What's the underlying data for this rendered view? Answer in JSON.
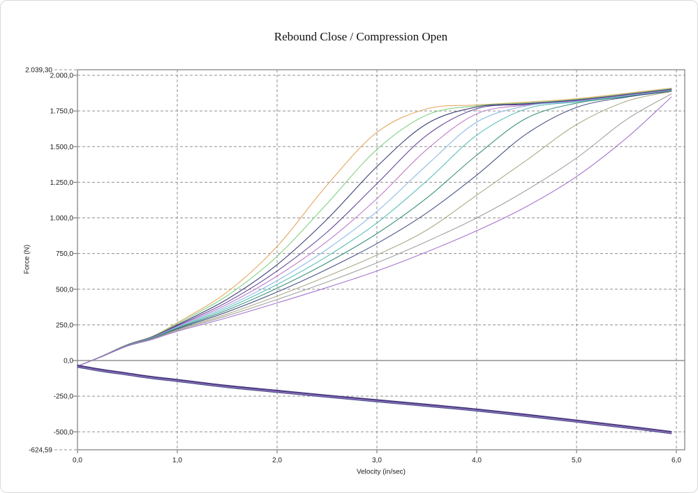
{
  "chart_data": {
    "type": "line",
    "title": "Rebound Close / Compression Open",
    "xlabel": "Velocity (in/sec)",
    "ylabel": "Force (N)",
    "xlim": [
      0,
      6.1
    ],
    "ylim": [
      -624.59,
      2039.3
    ],
    "ymax_label": "2.039,30",
    "ymin_label": "-624,59",
    "grid": "dashed",
    "legend": "none",
    "x_ticks": [
      {
        "label": "0,0",
        "value": 0
      },
      {
        "label": "1,0",
        "value": 1
      },
      {
        "label": "2,0",
        "value": 2
      },
      {
        "label": "3,0",
        "value": 3
      },
      {
        "label": "4,0",
        "value": 4
      },
      {
        "label": "5,0",
        "value": 5
      },
      {
        "label": "6,0",
        "value": 6
      }
    ],
    "y_ticks": [
      {
        "label": "2.000,0",
        "value": 2000
      },
      {
        "label": "1.750,0",
        "value": 1750
      },
      {
        "label": "1.500,0",
        "value": 1500
      },
      {
        "label": "1.250,0",
        "value": 1250
      },
      {
        "label": "1.000,0",
        "value": 1000
      },
      {
        "label": "750,0",
        "value": 750
      },
      {
        "label": "500,0",
        "value": 500
      },
      {
        "label": "250,0",
        "value": 250
      },
      {
        "label": "0,0",
        "value": 0
      },
      {
        "label": "-250,0",
        "value": -250
      },
      {
        "label": "-500,0",
        "value": -500
      }
    ],
    "x": [
      0,
      0.1,
      0.25,
      0.5,
      0.75,
      1,
      1.5,
      2,
      2.5,
      3,
      3.5,
      4,
      4.5,
      5,
      5.5,
      5.95
    ],
    "series": [
      {
        "name": "trace-01",
        "color": "#E2A45A",
        "values": [
          -40,
          -12,
          32,
          112,
          170,
          265,
          480,
          800,
          1230,
          1600,
          1765,
          1792,
          1812,
          1836,
          1874,
          1910
        ]
      },
      {
        "name": "trace-02",
        "color": "#7CCF7C",
        "values": [
          -40,
          -12,
          32,
          111,
          168,
          258,
          455,
          730,
          1100,
          1480,
          1722,
          1786,
          1806,
          1831,
          1869,
          1906
        ]
      },
      {
        "name": "trace-03",
        "color": "#2F3570",
        "values": [
          -40,
          -12,
          32,
          110,
          166,
          250,
          430,
          672,
          990,
          1360,
          1660,
          1778,
          1801,
          1827,
          1865,
          1902
        ]
      },
      {
        "name": "trace-04",
        "color": "#5C3E94",
        "values": [
          -40,
          -12,
          31,
          109,
          164,
          244,
          410,
          628,
          900,
          1240,
          1580,
          1766,
          1796,
          1823,
          1862,
          1899
        ]
      },
      {
        "name": "trace-05",
        "color": "#BC76C6",
        "values": [
          -40,
          -12,
          31,
          108,
          162,
          239,
          394,
          592,
          835,
          1135,
          1480,
          1730,
          1791,
          1820,
          1859,
          1896
        ]
      },
      {
        "name": "trace-06",
        "color": "#86B7E4",
        "values": [
          -40,
          -12,
          31,
          107,
          160,
          234,
          380,
          560,
          780,
          1045,
          1370,
          1672,
          1786,
          1816,
          1856,
          1894
        ]
      },
      {
        "name": "trace-07",
        "color": "#52BBB4",
        "values": [
          -40,
          -12,
          30,
          106,
          158,
          230,
          367,
          533,
          730,
          965,
          1260,
          1580,
          1766,
          1813,
          1853,
          1892
        ]
      },
      {
        "name": "trace-08",
        "color": "#2F8A74",
        "values": [
          -40,
          -12,
          30,
          105,
          156,
          226,
          354,
          507,
          685,
          890,
          1140,
          1440,
          1700,
          1805,
          1850,
          1890
        ]
      },
      {
        "name": "trace-09",
        "color": "#3E4A80",
        "values": [
          -40,
          -12,
          30,
          104,
          154,
          221,
          341,
          480,
          640,
          820,
          1035,
          1300,
          1590,
          1775,
          1847,
          1888
        ]
      },
      {
        "name": "trace-10",
        "color": "#A8A482",
        "values": [
          -40,
          -12,
          29,
          103,
          152,
          216,
          326,
          452,
          590,
          740,
          915,
          1160,
          1405,
          1655,
          1818,
          1886
        ]
      },
      {
        "name": "trace-11",
        "color": "#9C9C98",
        "values": [
          -40,
          -12,
          29,
          102,
          150,
          211,
          314,
          428,
          550,
          685,
          835,
          1000,
          1195,
          1420,
          1690,
          1870
        ]
      },
      {
        "name": "trace-12",
        "color": "#9F6FCB",
        "values": [
          -40,
          -12,
          29,
          101,
          148,
          205,
          300,
          404,
          512,
          628,
          762,
          910,
          1080,
          1290,
          1560,
          1848
        ]
      }
    ],
    "compression": {
      "name": "compression-common",
      "values": [
        -40,
        -52,
        -70,
        -95,
        -120,
        -140,
        -182,
        -216,
        -250,
        -282,
        -314,
        -347,
        -385,
        -425,
        -466,
        -505
      ]
    }
  }
}
